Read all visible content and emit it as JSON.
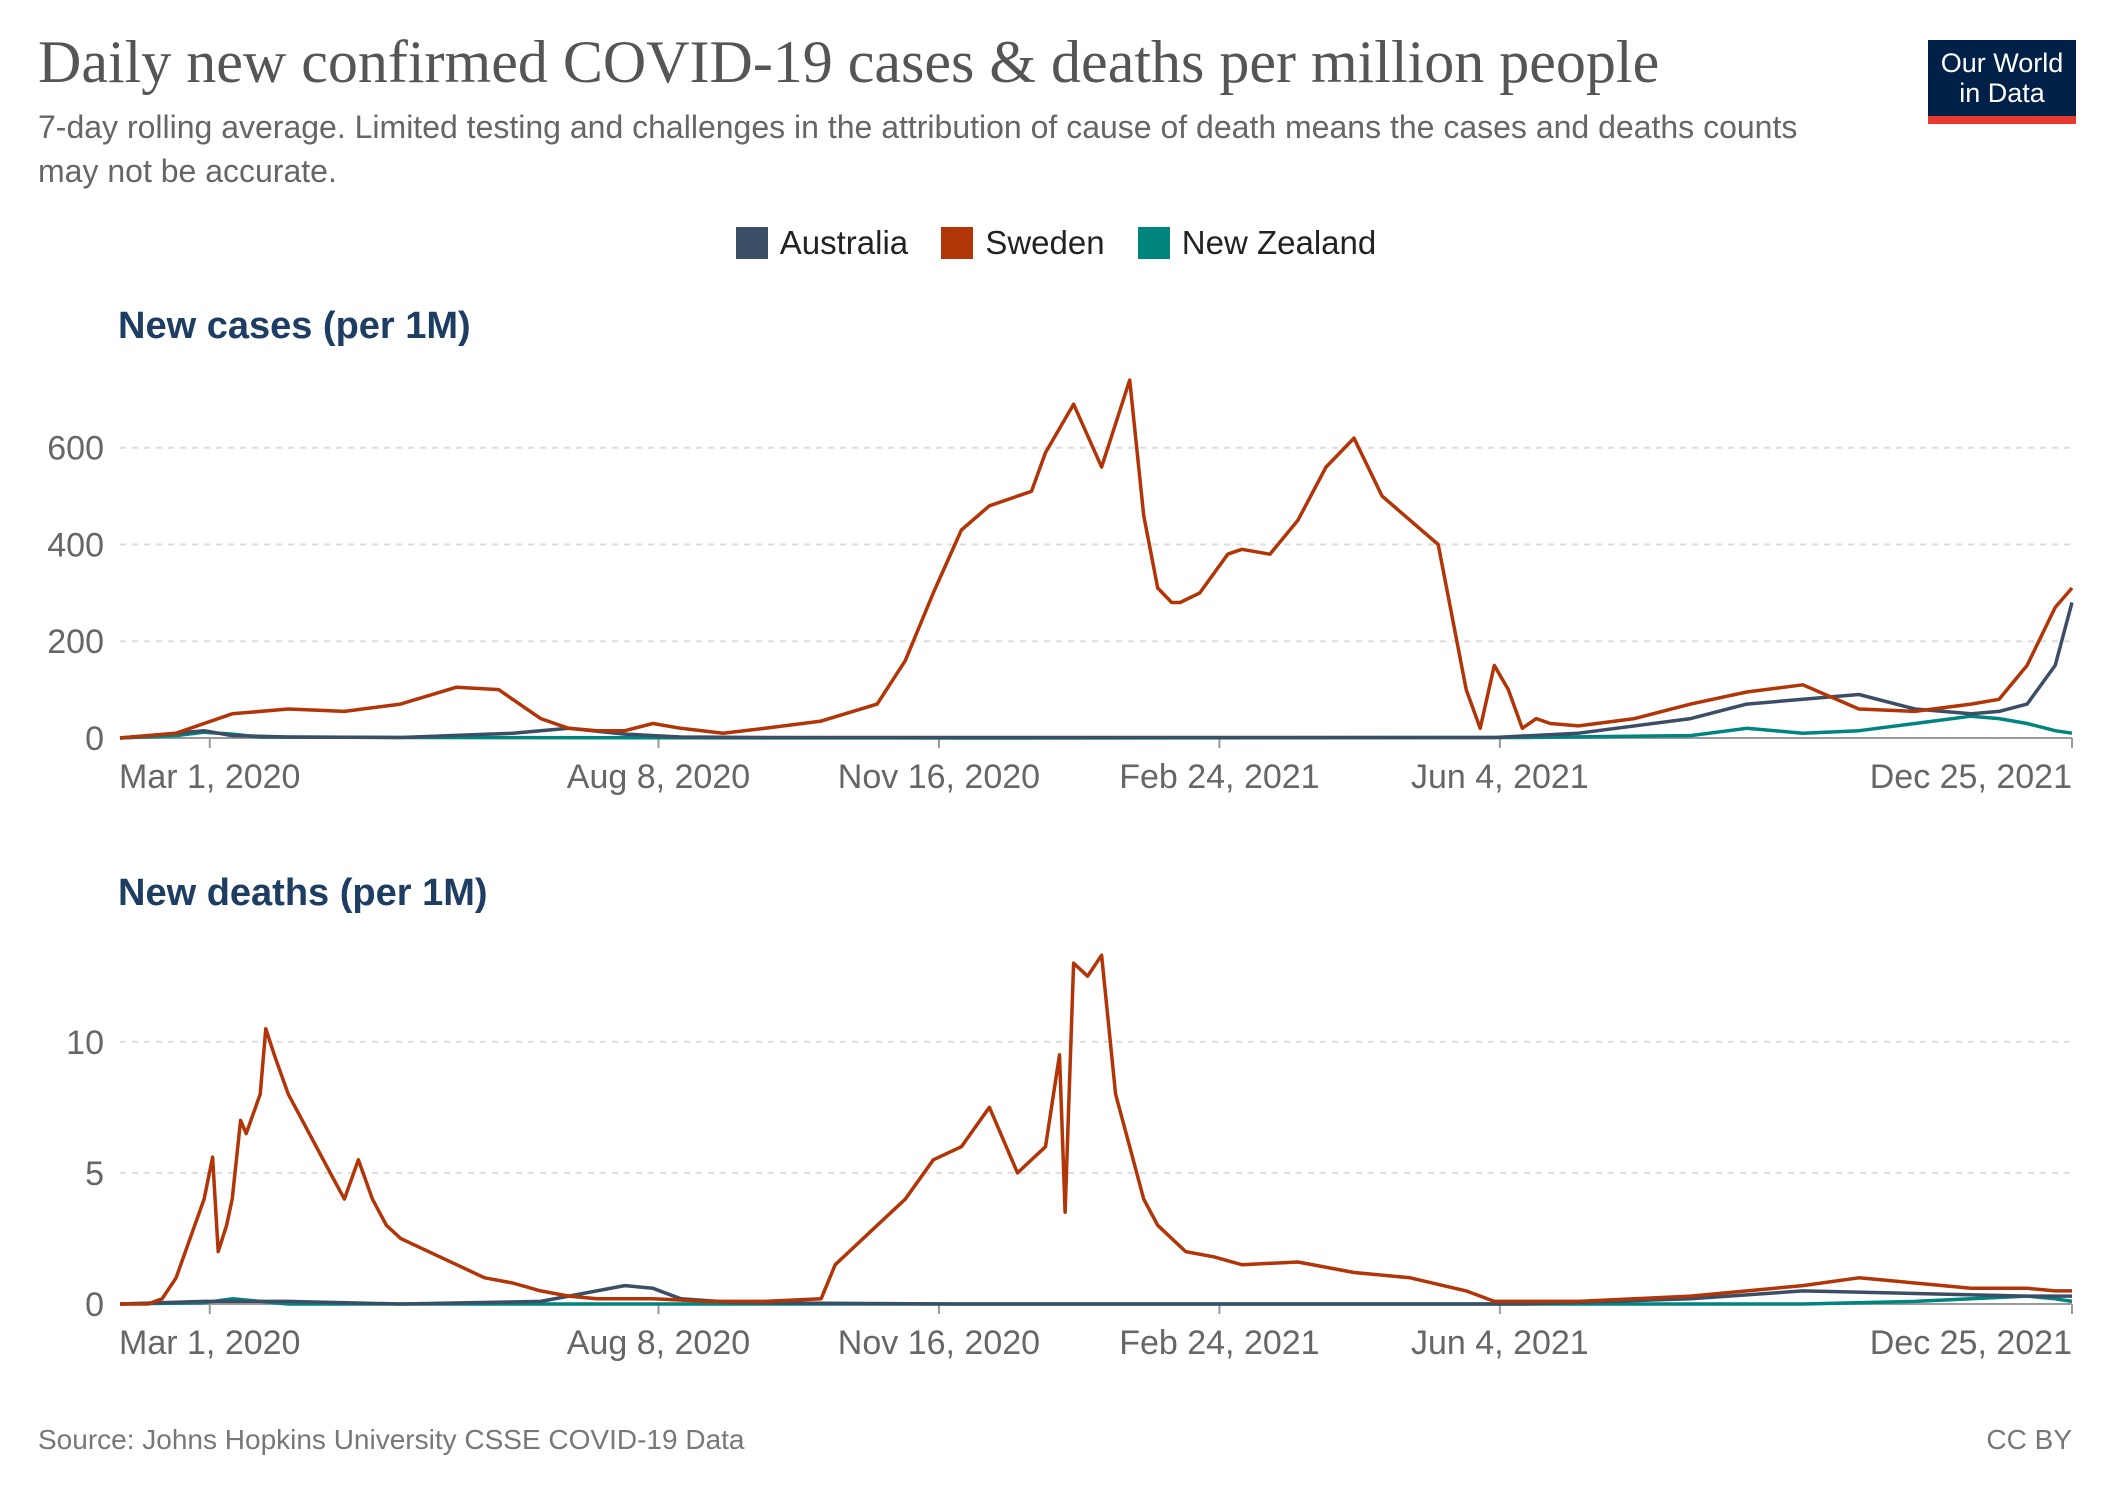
{
  "title": "Daily new confirmed COVID-19 cases & deaths per million people",
  "subtitle": "7-day rolling average. Limited testing and challenges in the attribution of cause of death means the cases and deaths counts may not be accurate.",
  "logo": {
    "line1": "Our World",
    "line2": "in Data"
  },
  "legend": [
    {
      "name": "Australia",
      "color": "#3c4e66"
    },
    {
      "name": "Sweden",
      "color": "#b13507"
    },
    {
      "name": "New Zealand",
      "color": "#00847e"
    }
  ],
  "footer": {
    "source": "Source: Johns Hopkins University CSSE COVID-19 Data",
    "license": "CC BY"
  },
  "chart_data": [
    {
      "type": "line",
      "title": "New cases (per 1M)",
      "xlabel": "",
      "ylabel": "",
      "x_ticks": [
        "Mar 1, 2020",
        "Aug 8, 2020",
        "Nov 16, 2020",
        "Feb 24, 2021",
        "Jun 4, 2021",
        "Dec 25, 2021"
      ],
      "x_tick_days": [
        32,
        192,
        292,
        392,
        492,
        696
      ],
      "y_ticks": [
        "0",
        "200",
        "400",
        "600"
      ],
      "y_tick_values": [
        0,
        200,
        400,
        600
      ],
      "ylim": [
        0,
        740
      ],
      "xlim_days": [
        0,
        696
      ],
      "grid": true,
      "series": [
        {
          "name": "Sweden",
          "color": "#b13507",
          "days": [
            0,
            10,
            20,
            30,
            40,
            60,
            80,
            100,
            120,
            135,
            140,
            150,
            160,
            170,
            180,
            190,
            200,
            215,
            230,
            250,
            270,
            280,
            290,
            300,
            310,
            325,
            330,
            340,
            350,
            360,
            365,
            370,
            375,
            378,
            385,
            390,
            395,
            400,
            410,
            420,
            430,
            440,
            450,
            460,
            470,
            480,
            485,
            490,
            495,
            500,
            505,
            510,
            520,
            540,
            560,
            580,
            600,
            620,
            640,
            660,
            670,
            680,
            690,
            696
          ],
          "values": [
            0,
            5,
            10,
            30,
            50,
            60,
            55,
            70,
            105,
            100,
            80,
            40,
            20,
            15,
            15,
            30,
            20,
            10,
            20,
            35,
            70,
            160,
            300,
            430,
            480,
            510,
            590,
            690,
            560,
            740,
            460,
            310,
            280,
            280,
            300,
            340,
            380,
            390,
            380,
            450,
            560,
            620,
            500,
            450,
            400,
            100,
            20,
            150,
            100,
            20,
            40,
            30,
            25,
            40,
            70,
            95,
            110,
            60,
            55,
            70,
            80,
            150,
            270,
            310
          ]
        },
        {
          "name": "Australia",
          "color": "#3c4e66",
          "days": [
            0,
            20,
            30,
            40,
            60,
            100,
            140,
            160,
            180,
            200,
            230,
            300,
            400,
            490,
            520,
            560,
            580,
            600,
            620,
            640,
            660,
            670,
            680,
            690,
            696
          ],
          "values": [
            0,
            10,
            15,
            5,
            2,
            1,
            10,
            20,
            8,
            2,
            1,
            1,
            1,
            1,
            10,
            40,
            70,
            80,
            90,
            60,
            50,
            55,
            70,
            150,
            280
          ]
        },
        {
          "name": "New Zealand",
          "color": "#00847e",
          "days": [
            0,
            20,
            30,
            40,
            50,
            100,
            300,
            500,
            560,
            580,
            600,
            620,
            640,
            660,
            670,
            680,
            690,
            696
          ],
          "values": [
            0,
            5,
            12,
            8,
            2,
            1,
            0,
            1,
            5,
            20,
            10,
            15,
            30,
            45,
            40,
            30,
            15,
            10
          ]
        }
      ]
    },
    {
      "type": "line",
      "title": "New deaths (per 1M)",
      "xlabel": "",
      "ylabel": "",
      "x_ticks": [
        "Mar 1, 2020",
        "Aug 8, 2020",
        "Nov 16, 2020",
        "Feb 24, 2021",
        "Jun 4, 2021",
        "Dec 25, 2021"
      ],
      "x_tick_days": [
        32,
        192,
        292,
        392,
        492,
        696
      ],
      "y_ticks": [
        "0",
        "5",
        "10"
      ],
      "y_tick_values": [
        0,
        5,
        10
      ],
      "ylim": [
        0,
        13.5
      ],
      "xlim_days": [
        0,
        696
      ],
      "grid": true,
      "series": [
        {
          "name": "Sweden",
          "color": "#b13507",
          "days": [
            0,
            10,
            15,
            20,
            25,
            30,
            33,
            35,
            38,
            40,
            43,
            45,
            50,
            52,
            55,
            60,
            65,
            70,
            75,
            80,
            85,
            90,
            95,
            100,
            110,
            120,
            130,
            140,
            150,
            160,
            170,
            190,
            210,
            230,
            250,
            255,
            260,
            270,
            280,
            290,
            300,
            310,
            320,
            330,
            335,
            337,
            340,
            345,
            350,
            355,
            360,
            365,
            370,
            380,
            390,
            400,
            420,
            440,
            460,
            480,
            490,
            500,
            510,
            520,
            540,
            560,
            600,
            620,
            640,
            660,
            680,
            690,
            696
          ],
          "values": [
            0,
            0,
            0.2,
            1,
            2.5,
            4,
            5.6,
            2,
            3,
            4,
            7,
            6.5,
            8,
            10.5,
            9.5,
            8,
            7,
            6,
            5,
            4,
            5.5,
            4,
            3,
            2.5,
            2,
            1.5,
            1,
            0.8,
            0.5,
            0.3,
            0.2,
            0.2,
            0.1,
            0.1,
            0.2,
            1.5,
            2,
            3,
            4,
            5.5,
            6,
            7.5,
            5,
            6,
            9.5,
            3.5,
            13,
            12.5,
            13.3,
            8,
            6,
            4,
            3,
            2,
            1.8,
            1.5,
            1.6,
            1.2,
            1,
            0.5,
            0.1,
            0.1,
            0.1,
            0.1,
            0.2,
            0.3,
            0.7,
            1,
            0.8,
            0.6,
            0.6,
            0.5,
            0.5
          ]
        },
        {
          "name": "Australia",
          "color": "#3c4e66",
          "days": [
            0,
            30,
            60,
            100,
            150,
            160,
            170,
            180,
            190,
            200,
            220,
            300,
            400,
            500,
            560,
            600,
            640,
            680,
            696
          ],
          "values": [
            0,
            0.1,
            0.1,
            0,
            0.1,
            0.3,
            0.5,
            0.7,
            0.6,
            0.2,
            0.05,
            0,
            0,
            0,
            0.2,
            0.5,
            0.4,
            0.3,
            0.3
          ]
        },
        {
          "name": "New Zealand",
          "color": "#00847e",
          "days": [
            0,
            30,
            40,
            50,
            60,
            100,
            300,
            500,
            600,
            640,
            660,
            680,
            690,
            696
          ],
          "values": [
            0,
            0.05,
            0.2,
            0.1,
            0,
            0,
            0,
            0,
            0,
            0.1,
            0.2,
            0.3,
            0.2,
            0.1
          ]
        }
      ]
    }
  ]
}
